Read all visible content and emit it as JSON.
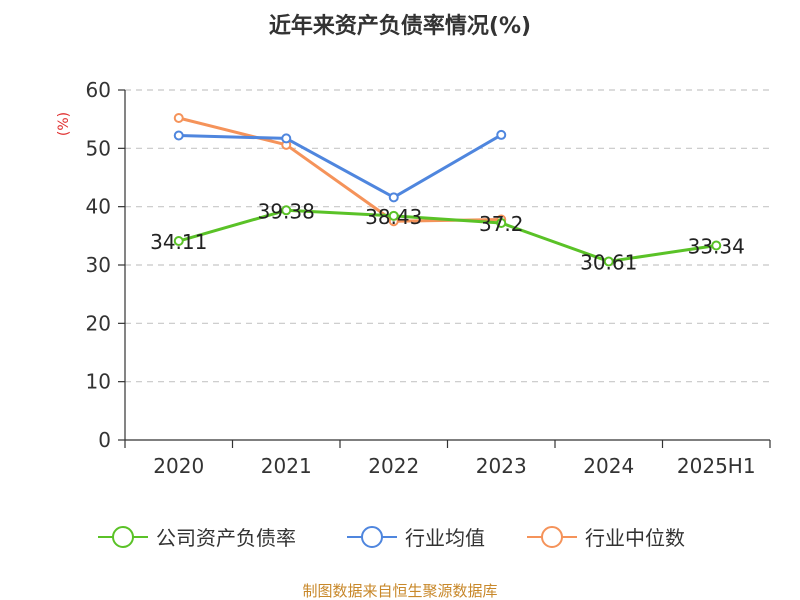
{
  "chart_data": {
    "type": "line",
    "title": "近年来资产负债率情况(%)",
    "y_unit": "(%)",
    "categories": [
      "2020",
      "2021",
      "2022",
      "2023",
      "2024",
      "2025H1"
    ],
    "ylim": [
      0,
      60
    ],
    "yticks": [
      0,
      10,
      20,
      30,
      40,
      50,
      60
    ],
    "grid": true,
    "legend_position": "bottom",
    "series": [
      {
        "name": "公司资产负债率",
        "color": "#5ac227",
        "values": [
          34.11,
          39.38,
          38.43,
          37.2,
          30.61,
          33.34
        ],
        "data_labels": [
          "34.11",
          "39.38",
          "38.43",
          "37.2",
          "30.61",
          "33.34"
        ]
      },
      {
        "name": "行业均值",
        "color": "#4f86de",
        "values": [
          52.2,
          51.7,
          41.6,
          52.3,
          null,
          null
        ]
      },
      {
        "name": "行业中位数",
        "color": "#f5935a",
        "values": [
          55.2,
          50.6,
          37.5,
          37.8,
          null,
          null
        ]
      }
    ]
  },
  "source": "制图数据来自恒生聚源数据库"
}
